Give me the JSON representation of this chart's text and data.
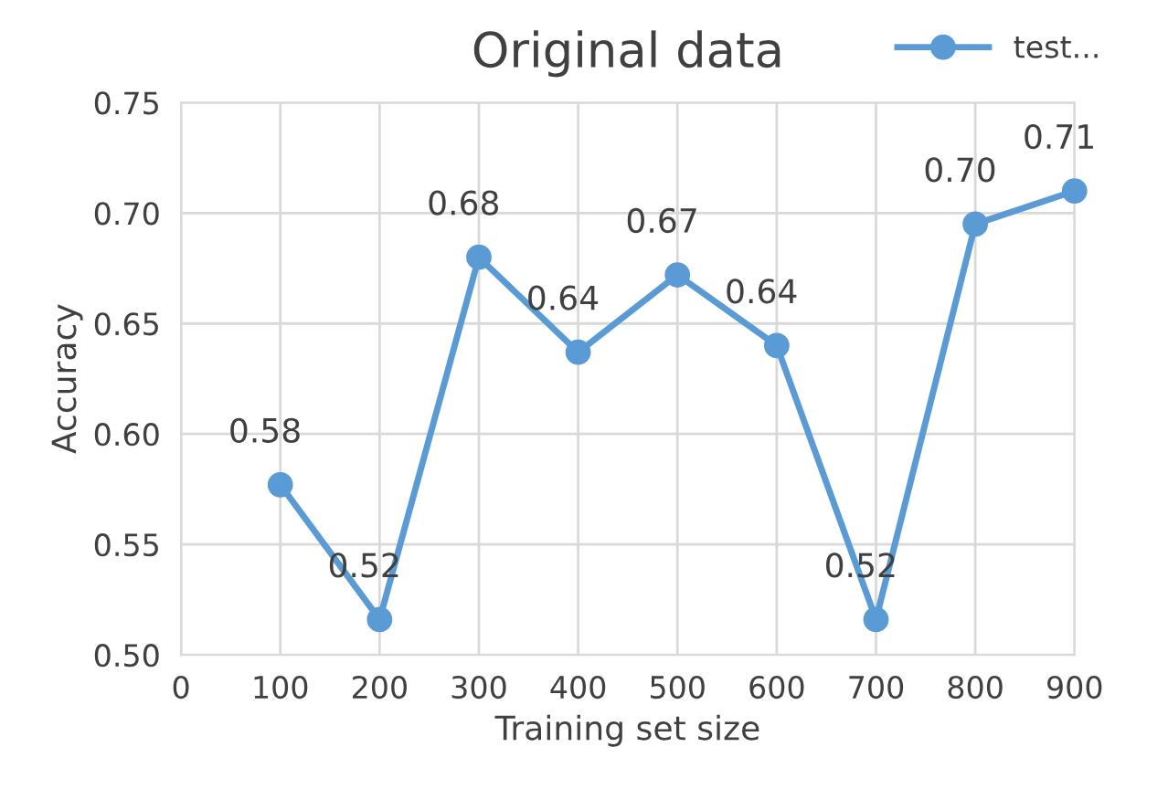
{
  "chart_data": {
    "type": "line",
    "title": "Original data",
    "xlabel": "Training set size",
    "ylabel": "Accuracy",
    "x": [
      100,
      200,
      300,
      400,
      500,
      600,
      700,
      800,
      900
    ],
    "series": [
      {
        "name": "test...",
        "color": "#5b9bd5",
        "values": [
          0.577,
          0.516,
          0.68,
          0.637,
          0.672,
          0.64,
          0.516,
          0.695,
          0.71
        ],
        "value_labels": [
          "0.58",
          "0.52",
          "0.68",
          "0.64",
          "0.67",
          "0.64",
          "0.52",
          "0.70",
          "0.71"
        ]
      }
    ],
    "xlim": [
      0,
      900
    ],
    "xticks": [
      0,
      100,
      200,
      300,
      400,
      500,
      600,
      700,
      800,
      900
    ],
    "ylim": [
      0.5,
      0.75
    ],
    "yticks": [
      {
        "value": 0.5,
        "label": "0.50"
      },
      {
        "value": 0.55,
        "label": "0.55"
      },
      {
        "value": 0.6,
        "label": "0.60"
      },
      {
        "value": 0.65,
        "label": "0.65"
      },
      {
        "value": 0.7,
        "label": "0.70"
      },
      {
        "value": 0.75,
        "label": "0.75"
      }
    ],
    "grid": true,
    "legend": "top right",
    "marker": "circle",
    "line_style": "solid"
  }
}
